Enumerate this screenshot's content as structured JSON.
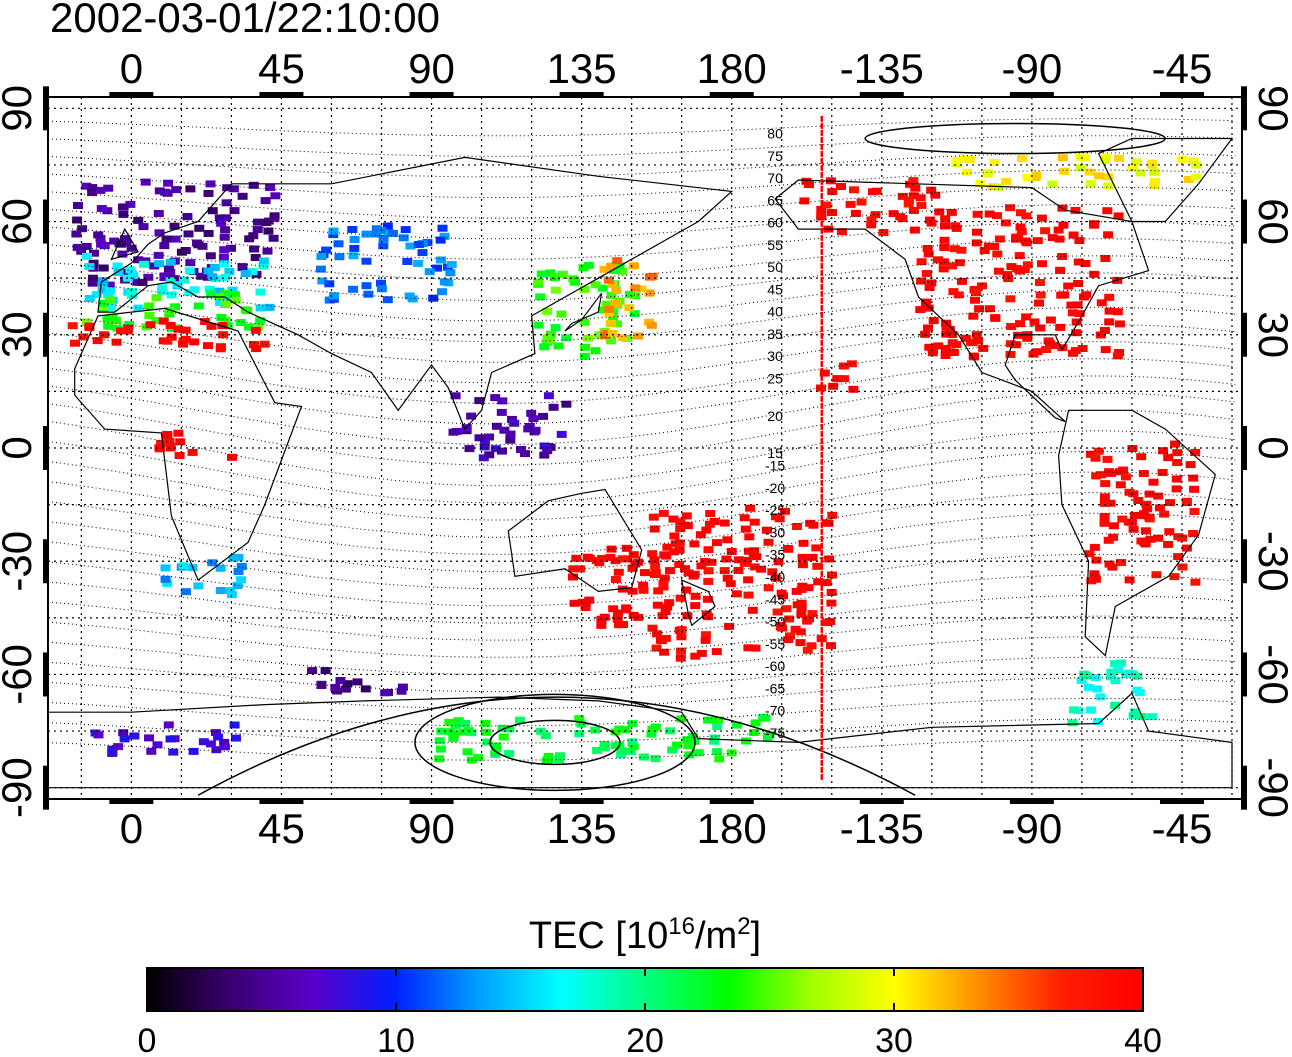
{
  "title": "2002-03-01/22:10:00",
  "map": {
    "lon_ticks": [
      "0",
      "45",
      "90",
      "135",
      "180",
      "-135",
      "-90",
      "-45"
    ],
    "lon_tick_values": [
      0,
      45,
      90,
      135,
      180,
      225,
      270,
      315
    ],
    "lat_ticks": [
      "90",
      "60",
      "30",
      "0",
      "-30",
      "-60",
      "-90"
    ],
    "lat_tick_values": [
      90,
      60,
      30,
      0,
      -30,
      -60,
      -90
    ],
    "lon_range": [
      -25,
      333
    ],
    "lat_range": [
      -93,
      93
    ],
    "terminator_lon": 207,
    "magnetic_lat_labels_north": [
      "80",
      "75",
      "70",
      "65",
      "60",
      "55",
      "50",
      "45",
      "40",
      "35",
      "30",
      "25",
      "20",
      "15"
    ],
    "magnetic_lat_labels_south": [
      "-15",
      "-20",
      "-25",
      "-30",
      "-35",
      "-40",
      "-45",
      "-50",
      "-55",
      "-60",
      "-65",
      "-70",
      "-75"
    ],
    "colors": {
      "frame": "#000000",
      "grid": "#000000",
      "terminator": "#ff0000"
    }
  },
  "colorbar": {
    "title_main": "TEC  [10",
    "title_sup1": "16",
    "title_mid": "/m",
    "title_sup2": "2",
    "title_end": "]",
    "ticks": [
      "0",
      "10",
      "20",
      "30",
      "40"
    ],
    "tick_values": [
      0,
      10,
      20,
      30,
      40
    ],
    "range": [
      0,
      40
    ],
    "stops": [
      "#000000",
      "#3a0070",
      "#5a00c8",
      "#0020ff",
      "#00a0ff",
      "#00ffff",
      "#00ff80",
      "#00ff00",
      "#a0ff00",
      "#ffff00",
      "#ff9000",
      "#ff2000",
      "#ff0000"
    ]
  },
  "tec_regions": [
    {
      "lon": [
        -18,
        42
      ],
      "lat": [
        44,
        72
      ],
      "tec": 5
    },
    {
      "lon": [
        -15,
        40
      ],
      "lat": [
        38,
        52
      ],
      "tec": 16
    },
    {
      "lon": [
        -15,
        38
      ],
      "lat": [
        32,
        42
      ],
      "tec": 24
    },
    {
      "lon": [
        -20,
        40
      ],
      "lat": [
        27,
        35
      ],
      "tec": 40
    },
    {
      "lon": [
        55,
        95
      ],
      "lat": [
        40,
        60
      ],
      "tec": 12
    },
    {
      "lon": [
        120,
        150
      ],
      "lat": [
        25,
        50
      ],
      "tec": 24
    },
    {
      "lon": [
        140,
        155
      ],
      "lat": [
        30,
        52
      ],
      "tec": 33
    },
    {
      "lon": [
        95,
        130
      ],
      "lat": [
        -2,
        15
      ],
      "tec": 6
    },
    {
      "lon": [
        235,
        295
      ],
      "lat": [
        25,
        65
      ],
      "tec": 40
    },
    {
      "lon": [
        200,
        240
      ],
      "lat": [
        58,
        72
      ],
      "tec": 40
    },
    {
      "lon": [
        245,
        320
      ],
      "lat": [
        70,
        78
      ],
      "tec": 30
    },
    {
      "lon": [
        205,
        215
      ],
      "lat": [
        15,
        25
      ],
      "tec": 40
    },
    {
      "lon": [
        155,
        210
      ],
      "lat": [
        -55,
        -15
      ],
      "tec": 40
    },
    {
      "lon": [
        130,
        160
      ],
      "lat": [
        -48,
        -25
      ],
      "tec": 40
    },
    {
      "lon": [
        285,
        318
      ],
      "lat": [
        -35,
        2
      ],
      "tec": 40
    },
    {
      "lon": [
        280,
        305
      ],
      "lat": [
        -72,
        -55
      ],
      "tec": 18
    },
    {
      "lon": [
        5,
        30
      ],
      "lat": [
        -2,
        5
      ],
      "tec": 40
    },
    {
      "lon": [
        8,
        35
      ],
      "lat": [
        -38,
        -28
      ],
      "tec": 14
    },
    {
      "lon": [
        -15,
        30
      ],
      "lat": [
        -80,
        -72
      ],
      "tec": 7
    },
    {
      "lon": [
        90,
        190
      ],
      "lat": [
        -82,
        -70
      ],
      "tec": 22
    },
    {
      "lon": [
        50,
        80
      ],
      "lat": [
        -65,
        -58
      ],
      "tec": 4
    }
  ]
}
